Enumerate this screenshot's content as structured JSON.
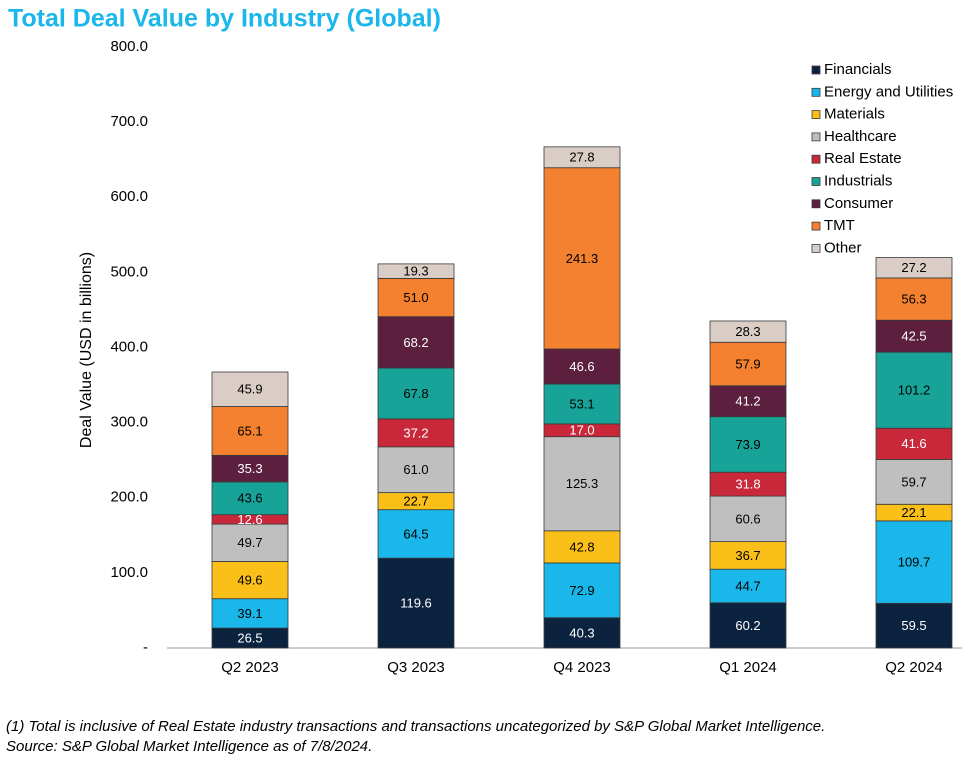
{
  "chart_data": {
    "type": "stacked_bar",
    "title": "Total Deal Value by Industry (Global)",
    "y_label": "Deal Value (USD in billions)",
    "footnotes": [
      "(1) Total is inclusive of Real Estate industry transactions and transactions uncategorized by S&P Global Market Intelligence.",
      "Source: S&P Global Market Intelligence as of 7/8/2024."
    ],
    "categories": [
      "Q2 2023",
      "Q3 2023",
      "Q4 2023",
      "Q1 2024",
      "Q2 2024"
    ],
    "ylim": [
      0,
      800
    ],
    "yticks": [
      {
        "value": 0,
        "label": "-"
      },
      {
        "value": 100,
        "label": "100.0"
      },
      {
        "value": 200,
        "label": "200.0"
      },
      {
        "value": 300,
        "label": "300.0"
      },
      {
        "value": 400,
        "label": "400.0"
      },
      {
        "value": 500,
        "label": "500.0"
      },
      {
        "value": 600,
        "label": "600.0"
      },
      {
        "value": 700,
        "label": "700.0"
      },
      {
        "value": 800,
        "label": "800.0"
      }
    ],
    "legend": "upper right",
    "series": [
      {
        "name": "Financials",
        "color": "#0c2340",
        "values": [
          26.5,
          119.6,
          40.3,
          60.2,
          59.5
        ],
        "value_labels": [
          "26.5",
          "119.6",
          "40.3",
          "60.2",
          "59.5"
        ]
      },
      {
        "name": "Energy and Utilities",
        "color": "#1ab7ea",
        "values": [
          39.1,
          64.5,
          72.9,
          44.7,
          109.7
        ],
        "value_labels": [
          "39.1",
          "64.5",
          "72.9",
          "44.7",
          "109.7"
        ]
      },
      {
        "name": "Materials",
        "color": "#fbbf1a",
        "values": [
          49.6,
          22.7,
          42.8,
          36.7,
          22.1
        ],
        "value_labels": [
          "49.6",
          "22.7",
          "42.8",
          "36.7",
          "22.1"
        ]
      },
      {
        "name": "Healthcare",
        "color": "#bfbfbf",
        "values": [
          49.7,
          61.0,
          125.3,
          60.6,
          59.7
        ],
        "value_labels": [
          "49.7",
          "61.0",
          "125.3",
          "60.6",
          "59.7"
        ]
      },
      {
        "name": "Real Estate",
        "color": "#c8283a",
        "values": [
          12.6,
          37.2,
          17.0,
          31.8,
          41.6
        ],
        "value_labels": [
          "12.6",
          "37.2",
          "17.0",
          "31.8",
          "41.6"
        ]
      },
      {
        "name": "Industrials",
        "color": "#17a398",
        "values": [
          43.6,
          67.8,
          53.1,
          73.9,
          101.2
        ],
        "value_labels": [
          "43.6",
          "67.8",
          "53.1",
          "73.9",
          "101.2"
        ]
      },
      {
        "name": "Consumer",
        "color": "#5c1f3e",
        "values": [
          35.3,
          68.2,
          46.6,
          41.2,
          42.5
        ],
        "value_labels": [
          "35.3",
          "68.2",
          "46.6",
          "41.2",
          "42.5"
        ]
      },
      {
        "name": "TMT",
        "color": "#f4812f",
        "values": [
          65.1,
          51.0,
          241.3,
          57.9,
          56.3
        ],
        "value_labels": [
          "65.1",
          "51.0",
          "241.3",
          "57.9",
          "56.3"
        ]
      },
      {
        "name": "Other",
        "color": "#d9cdc6",
        "values": [
          45.9,
          19.3,
          27.8,
          28.3,
          27.2
        ],
        "value_labels": [
          "45.9",
          "19.3",
          "27.8",
          "28.3",
          "27.2"
        ]
      }
    ]
  }
}
